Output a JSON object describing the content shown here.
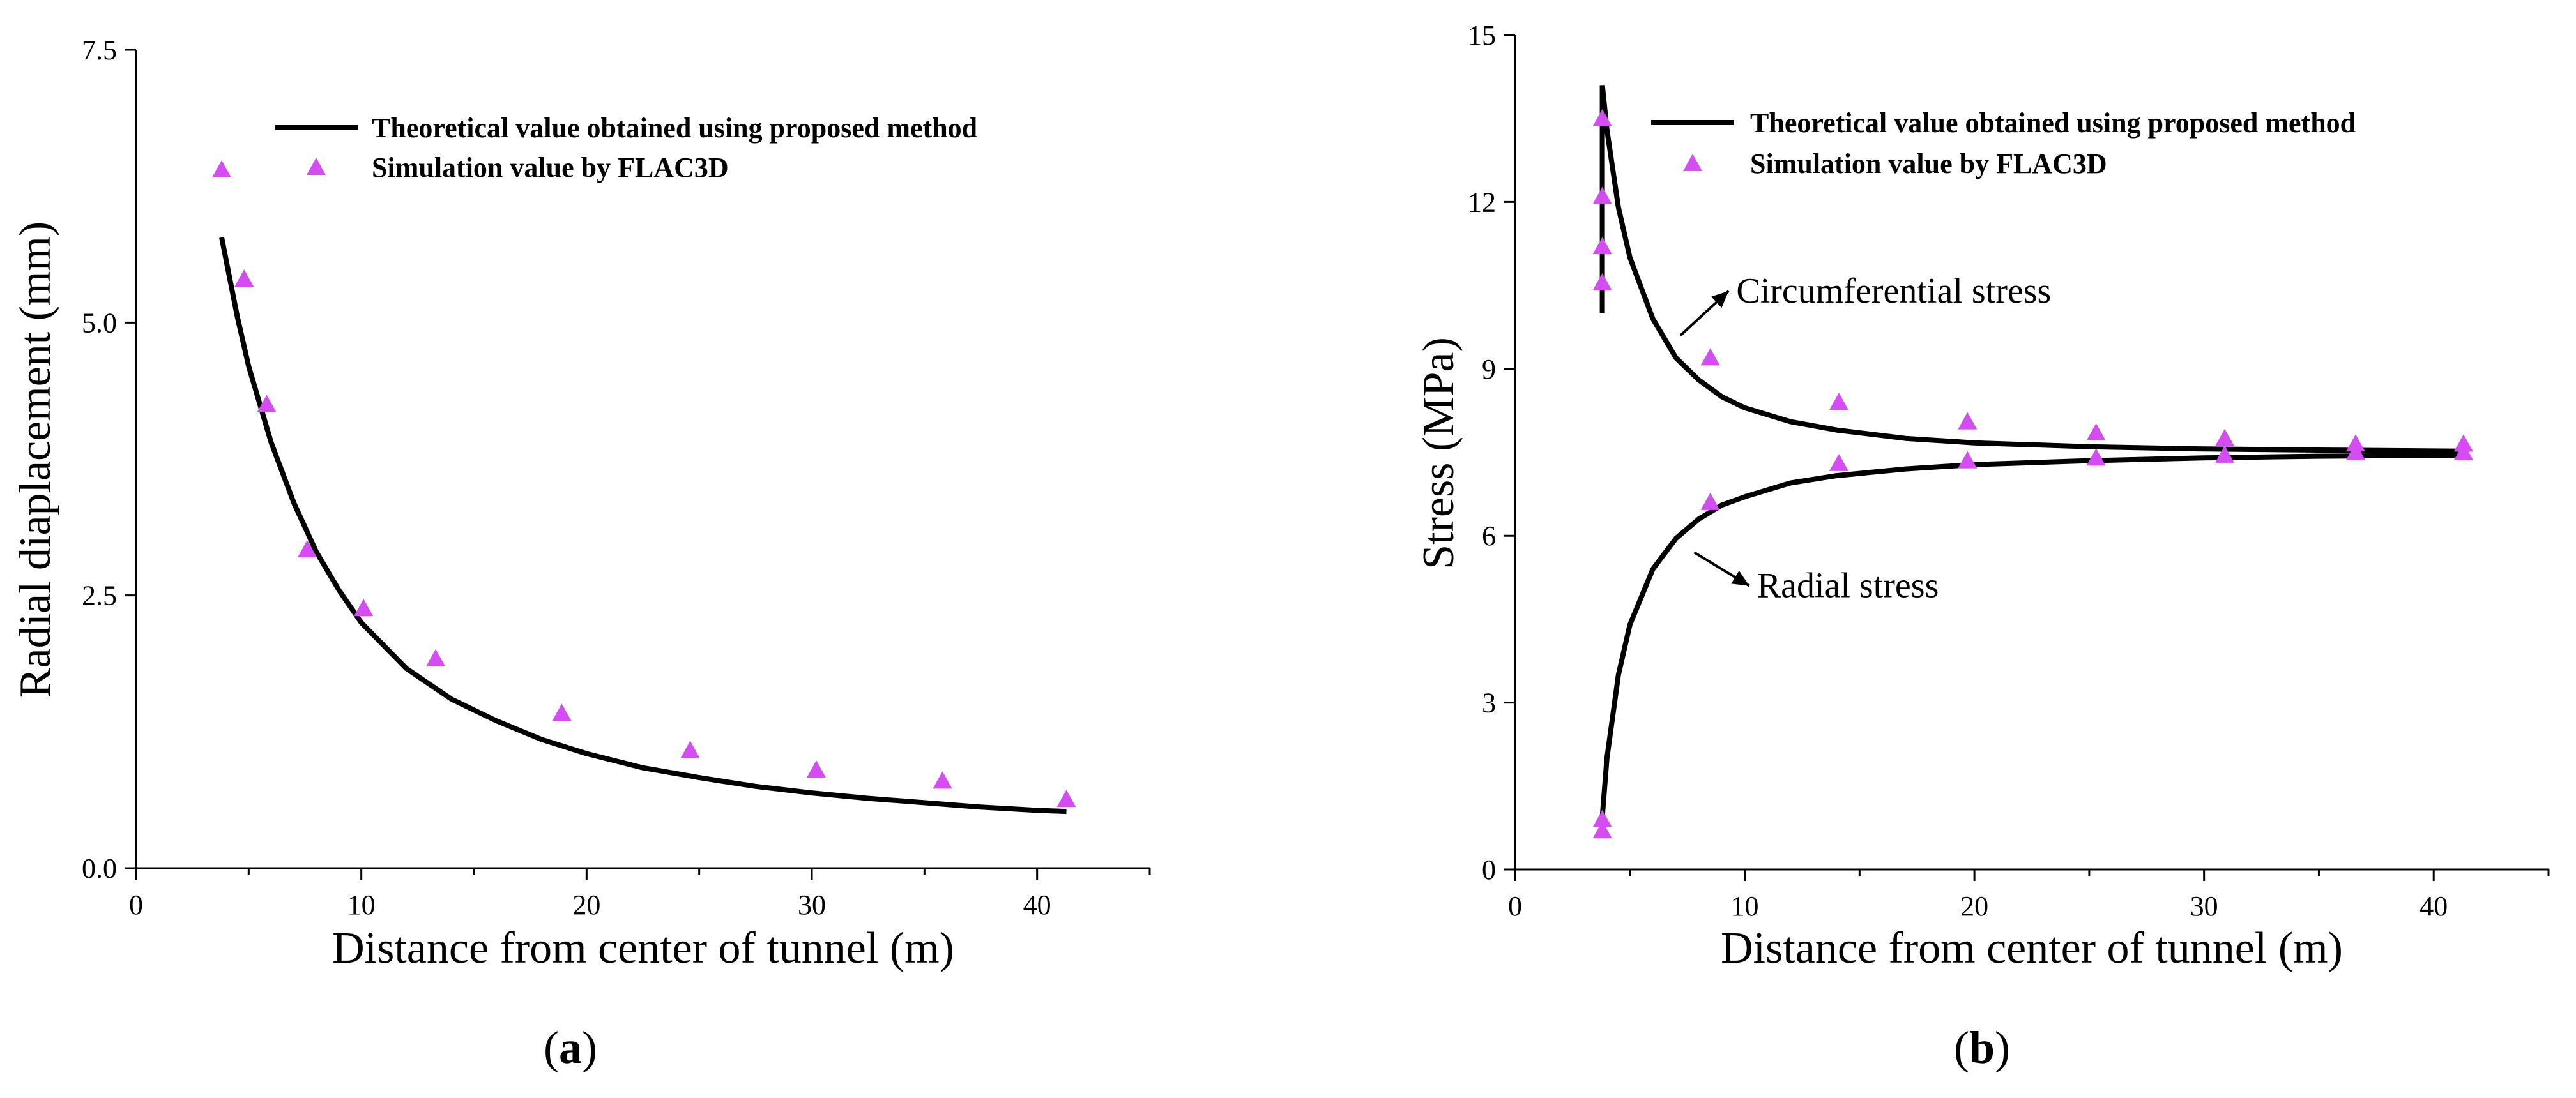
{
  "colors": {
    "curve": "#000000",
    "marker": "#d44cf2",
    "axis": "#000000"
  },
  "marker_shape": "triangle-icon",
  "chart_data": [
    {
      "type": "line",
      "panel": "a",
      "caption": {
        "open": "(",
        "letter": "a",
        "close": ")"
      },
      "title": "",
      "xlabel": "Distance from center of tunnel (m)",
      "ylabel": "Radial diaplacement (mm)",
      "xlim": [
        0,
        45
      ],
      "ylim": [
        0,
        7.5
      ],
      "xticks": [
        0,
        10,
        20,
        30,
        40
      ],
      "yticks": [
        0,
        2.5,
        5,
        7.5
      ],
      "xtick_labels": [
        "0",
        "10",
        "20",
        "30",
        "40"
      ],
      "ytick_labels": [
        "0.0",
        "2.5",
        "5.0",
        "7.5"
      ],
      "grid": false,
      "legend_position": "top-right",
      "series": [
        {
          "name": "Theoretical value obtained using proposed method",
          "kind": "line",
          "curves": [
            {
              "x": [
                3.8,
                4.5,
                5,
                6,
                7,
                8,
                9,
                10,
                12,
                14,
                16,
                18,
                20,
                22.5,
                25,
                27.5,
                30,
                32.5,
                35,
                37.5,
                40,
                41.3
              ],
              "y": [
                5.78,
                5.05,
                4.6,
                3.9,
                3.35,
                2.9,
                2.55,
                2.25,
                1.83,
                1.55,
                1.35,
                1.18,
                1.05,
                0.92,
                0.83,
                0.75,
                0.69,
                0.64,
                0.6,
                0.56,
                0.53,
                0.52
              ]
            }
          ]
        },
        {
          "name": "Simulation value by FLAC3D",
          "kind": "marker",
          "points": [
            {
              "x": 3.8,
              "y": 6.4
            },
            {
              "x": 4.8,
              "y": 5.4
            },
            {
              "x": 5.8,
              "y": 4.25
            },
            {
              "x": 7.6,
              "y": 2.92
            },
            {
              "x": 10.1,
              "y": 2.38
            },
            {
              "x": 13.3,
              "y": 1.92
            },
            {
              "x": 18.9,
              "y": 1.42
            },
            {
              "x": 24.6,
              "y": 1.08
            },
            {
              "x": 30.2,
              "y": 0.9
            },
            {
              "x": 35.8,
              "y": 0.8
            },
            {
              "x": 41.3,
              "y": 0.63
            }
          ]
        }
      ],
      "annotations": []
    },
    {
      "type": "line",
      "panel": "b",
      "caption": {
        "open": "(",
        "letter": "b",
        "close": ")"
      },
      "title": "",
      "xlabel": "Distance from center of tunnel (m)",
      "ylabel": "Stress (MPa)",
      "xlim": [
        0,
        45
      ],
      "ylim": [
        0,
        15
      ],
      "xticks": [
        0,
        10,
        20,
        30,
        40
      ],
      "yticks": [
        0,
        3,
        6,
        9,
        12,
        15
      ],
      "xtick_labels": [
        "0",
        "10",
        "20",
        "30",
        "40"
      ],
      "ytick_labels": [
        "0",
        "3",
        "6",
        "9",
        "12",
        "15"
      ],
      "grid": false,
      "legend_position": "top-right",
      "series": [
        {
          "name": "Theoretical value obtained using proposed method",
          "kind": "line",
          "curves": [
            {
              "x": [
                3.8,
                3.8
              ],
              "y": [
                10.0,
                14.1
              ]
            },
            {
              "x": [
                3.8,
                4,
                4.5,
                5,
                6,
                7,
                8,
                9,
                10,
                12,
                14,
                17,
                20,
                25,
                30,
                35,
                41.3
              ],
              "y": [
                14.1,
                13.3,
                11.9,
                11.0,
                9.9,
                9.2,
                8.8,
                8.5,
                8.3,
                8.05,
                7.9,
                7.75,
                7.67,
                7.6,
                7.56,
                7.54,
                7.52
              ]
            },
            {
              "x": [
                3.8,
                4,
                4.5,
                5,
                6,
                7,
                8,
                9,
                10,
                12,
                14,
                17,
                20,
                25,
                30,
                35,
                41.3
              ],
              "y": [
                0.95,
                2.0,
                3.5,
                4.4,
                5.4,
                5.95,
                6.3,
                6.55,
                6.7,
                6.95,
                7.08,
                7.2,
                7.28,
                7.35,
                7.4,
                7.43,
                7.45
              ]
            }
          ]
        },
        {
          "name": "Simulation value by FLAC3D",
          "kind": "marker",
          "points": [
            {
              "x": 3.8,
              "y": 13.5
            },
            {
              "x": 3.8,
              "y": 12.1
            },
            {
              "x": 3.8,
              "y": 11.2
            },
            {
              "x": 3.8,
              "y": 10.55
            },
            {
              "x": 8.5,
              "y": 9.2
            },
            {
              "x": 14.1,
              "y": 8.4
            },
            {
              "x": 19.7,
              "y": 8.05
            },
            {
              "x": 25.3,
              "y": 7.85
            },
            {
              "x": 30.9,
              "y": 7.75
            },
            {
              "x": 36.6,
              "y": 7.65
            },
            {
              "x": 41.3,
              "y": 7.65
            },
            {
              "x": 3.8,
              "y": 0.9
            },
            {
              "x": 3.8,
              "y": 0.7
            },
            {
              "x": 8.5,
              "y": 6.6
            },
            {
              "x": 14.1,
              "y": 7.3
            },
            {
              "x": 19.7,
              "y": 7.35
            },
            {
              "x": 25.3,
              "y": 7.4
            },
            {
              "x": 30.9,
              "y": 7.45
            },
            {
              "x": 36.6,
              "y": 7.5
            },
            {
              "x": 41.3,
              "y": 7.5
            }
          ]
        }
      ],
      "annotations": [
        {
          "text": "Circumferential stress",
          "arrow_from": [
            7.2,
            9.6
          ],
          "arrow_to": [
            9.3,
            10.4
          ]
        },
        {
          "text": "Radial stress",
          "arrow_from": [
            7.8,
            5.7
          ],
          "arrow_to": [
            10.2,
            5.1
          ]
        }
      ]
    }
  ]
}
